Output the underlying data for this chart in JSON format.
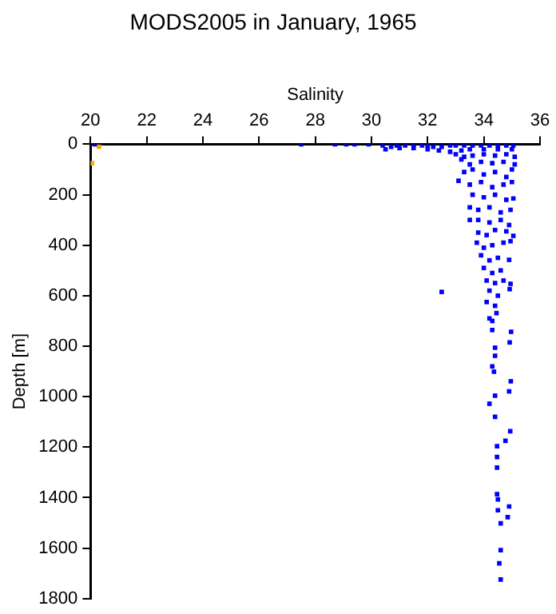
{
  "chart_data": {
    "type": "scatter",
    "title": "MODS2005 in January, 1965",
    "xlabel": "Salinity",
    "ylabel": "Depth [m]",
    "xlim": [
      20,
      36
    ],
    "xticks": [
      20,
      22,
      24,
      26,
      28,
      30,
      32,
      34,
      36
    ],
    "ylim": [
      1800,
      0
    ],
    "yticks": [
      0,
      200,
      400,
      600,
      800,
      1000,
      1200,
      1400,
      1600,
      1800
    ],
    "grid": false,
    "legend": false,
    "marker": "square",
    "series": [
      {
        "color": "#0000ff",
        "x": [
          20.15,
          27.5,
          28.7,
          29.1,
          29.4,
          29.9,
          30.4,
          30.5,
          30.7,
          30.9,
          31.2,
          31.5,
          31.8,
          32,
          32.2,
          32.5,
          32.8,
          33,
          33.3,
          33.6,
          33.9,
          34.2,
          34.5,
          34.8,
          35.05,
          31,
          31.5,
          32,
          32.4,
          32.8,
          33.2,
          33.5,
          34,
          34.5,
          35,
          33,
          33.3,
          33.6,
          34,
          34.4,
          34.8,
          35.1,
          33.2,
          33.5,
          33.9,
          34.3,
          34.7,
          35.1,
          33.3,
          33.6,
          34,
          34.4,
          34.8,
          35,
          33.1,
          33.5,
          33.9,
          34.3,
          34.7,
          35,
          33.6,
          34,
          34.4,
          34.8,
          35.05,
          33.5,
          33.8,
          34.2,
          34.6,
          34.95,
          33.5,
          33.8,
          34.2,
          34.6,
          34.9,
          33.8,
          34.1,
          34.4,
          34.8,
          35.05,
          33.75,
          34,
          34.3,
          34.7,
          34.95,
          33.9,
          34.2,
          34.5,
          34.9,
          34,
          34.3,
          34.6,
          34.1,
          34.4,
          34.7,
          34.95,
          34.92,
          34.2,
          34.5,
          32.5,
          34.1,
          34.4,
          34.45,
          34.2,
          34.3,
          34.3,
          34.97,
          34.92,
          34.4,
          34.4,
          34.3,
          34.36,
          34.96,
          34.9,
          34.4,
          34.2,
          34.4,
          34.94,
          34.77,
          34.47,
          34.47,
          34.47,
          34.47,
          34.5,
          34.9,
          34.5,
          34.85,
          34.6,
          34.6,
          34.55,
          34.6
        ],
        "values": [
          0,
          0,
          0,
          0,
          0,
          0,
          5,
          20,
          10,
          5,
          5,
          5,
          5,
          5,
          10,
          10,
          5,
          5,
          5,
          5,
          5,
          5,
          5,
          5,
          5,
          15,
          15,
          20,
          25,
          30,
          25,
          20,
          20,
          20,
          20,
          40,
          50,
          45,
          40,
          45,
          40,
          50,
          60,
          80,
          70,
          75,
          70,
          80,
          110,
          100,
          120,
          110,
          130,
          100,
          145,
          160,
          150,
          170,
          160,
          150,
          200,
          210,
          200,
          220,
          215,
          250,
          260,
          250,
          270,
          260,
          300,
          300,
          310,
          300,
          320,
          350,
          360,
          340,
          345,
          363,
          390,
          410,
          400,
          390,
          384,
          440,
          460,
          450,
          458,
          490,
          510,
          500,
          540,
          550,
          540,
          553,
          574,
          580,
          600,
          585,
          625,
          640,
          669,
          690,
          700,
          736,
          743,
          785,
          806,
          838,
          880,
          901,
          939,
          979,
          996,
          1028,
          1080,
          1137,
          1175,
          1196,
          1239,
          1281,
          1386,
          1407,
          1435,
          1450,
          1477,
          1502,
          1608,
          1660,
          1724
        ]
      },
      {
        "color": "#ffa500",
        "x": [
          20.3,
          20.05
        ],
        "values": [
          10,
          75
        ]
      }
    ]
  }
}
